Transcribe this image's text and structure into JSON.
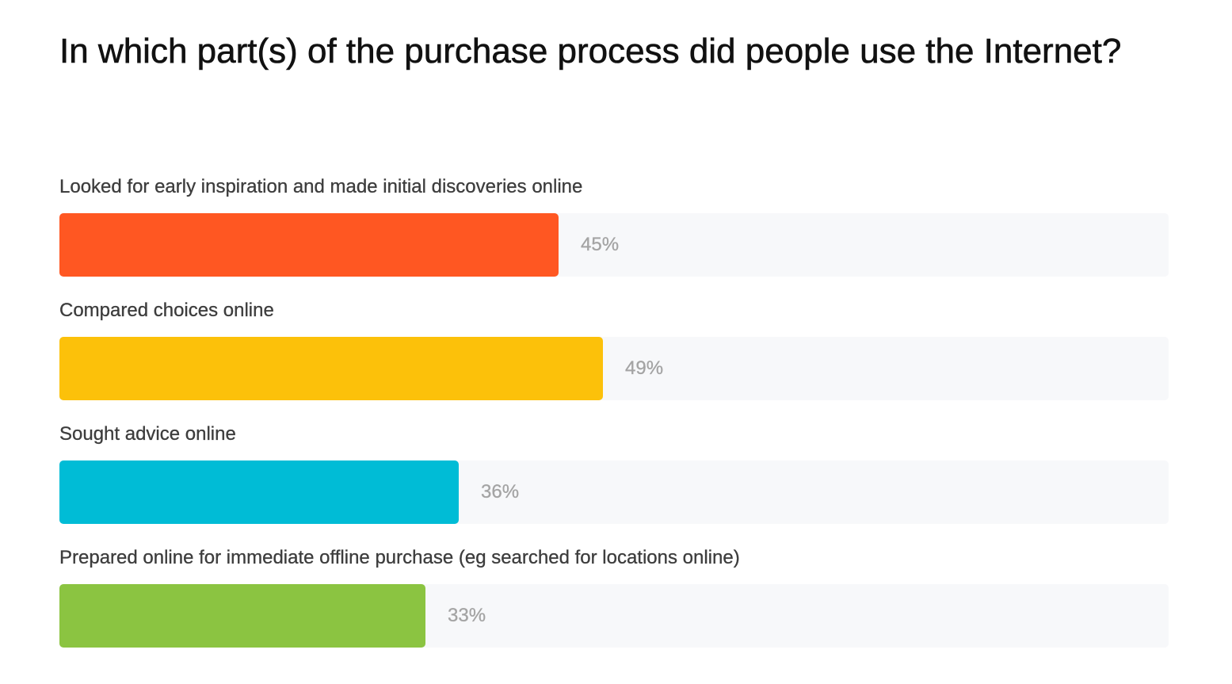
{
  "chart_data": {
    "type": "bar",
    "orientation": "horizontal",
    "title": "In which part(s) of the purchase process did people use the Internet?",
    "categories": [
      "Looked for early inspiration and made initial discoveries online",
      "Compared choices online",
      "Sought advice online",
      "Prepared online for immediate offline purchase (eg searched for locations online)"
    ],
    "values": [
      45,
      49,
      36,
      33
    ],
    "value_labels": [
      "45%",
      "49%",
      "36%",
      "33%"
    ],
    "colors": [
      "#ff5722",
      "#fcc10a",
      "#00bcd6",
      "#8bc441"
    ],
    "xlim": [
      0,
      100
    ],
    "grid": false,
    "legend": "none"
  }
}
